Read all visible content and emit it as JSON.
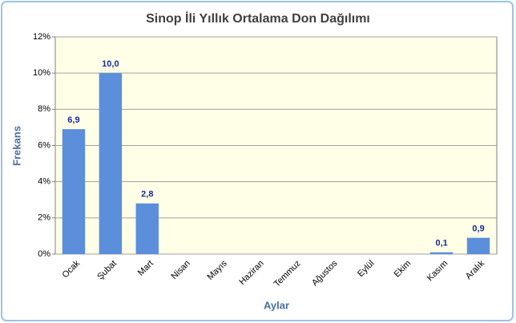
{
  "chart_data": {
    "type": "bar",
    "title": "Sinop İli Yıllık Ortalama Don Dağılımı",
    "x_label": "Aylar",
    "y_label": "Frekans",
    "categories": [
      "Ocak",
      "Şubat",
      "Mart",
      "Nisan",
      "Mayıs",
      "Haziran",
      "Temmuz",
      "Ağustos",
      "Eylül",
      "Ekim",
      "Kasım",
      "Aralık"
    ],
    "values": [
      6.9,
      10.0,
      2.8,
      0,
      0,
      0,
      0,
      0,
      0,
      0,
      0.1,
      0.9
    ],
    "value_labels": [
      "6,9",
      "10,0",
      "2,8",
      null,
      null,
      null,
      null,
      null,
      null,
      null,
      "0,1",
      "0,9"
    ],
    "color": "#5b8fdb",
    "ylim": [
      0,
      12
    ],
    "yticks": [
      {
        "value": 0,
        "label": "0%"
      },
      {
        "value": 2,
        "label": "2%"
      },
      {
        "value": 4,
        "label": "4%"
      },
      {
        "value": 6,
        "label": "6%"
      },
      {
        "value": 8,
        "label": "8%"
      },
      {
        "value": 10,
        "label": "10%"
      },
      {
        "value": 12,
        "label": "12%"
      }
    ],
    "grid": true
  }
}
